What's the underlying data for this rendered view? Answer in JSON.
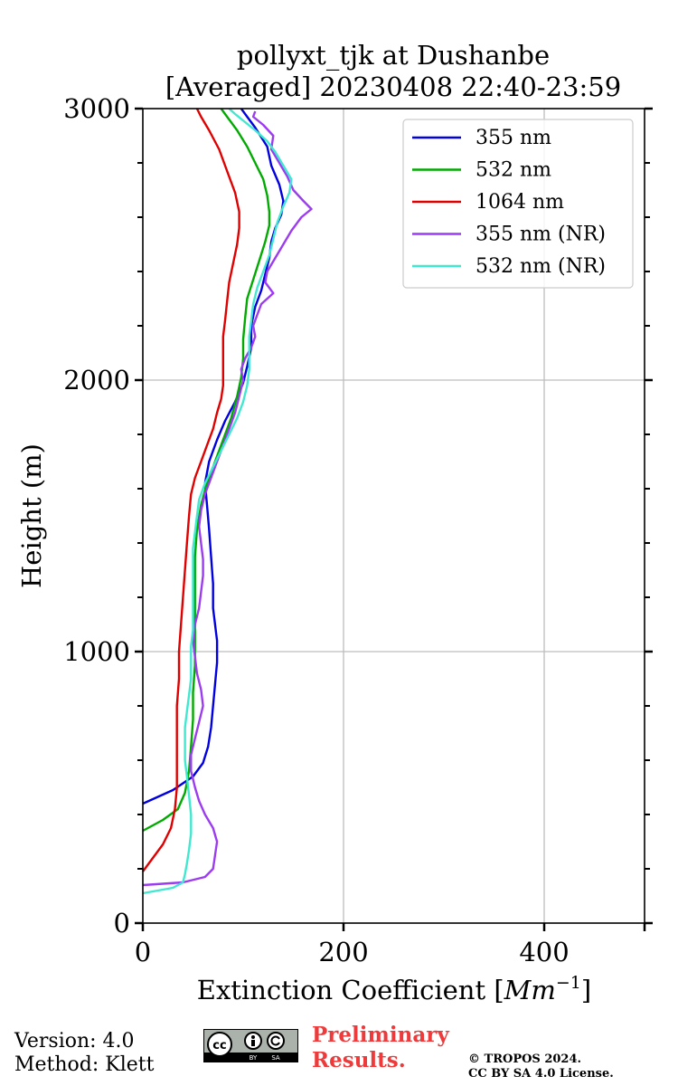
{
  "chart_data": {
    "type": "line",
    "title": "pollyxt_tjk at Dushanbe",
    "subtitle": "[Averaged] 20230408 22:40-23:59",
    "xlabel": "Extinction Coefficient [",
    "xlabel_unit": "Mm",
    "xlabel_exp": "−1",
    "xlabel_close": "]",
    "ylabel": "Height (m)",
    "xlim": [
      0,
      500
    ],
    "ylim": [
      0,
      3000
    ],
    "xticks": [
      0,
      200,
      400
    ],
    "yticks": [
      0,
      1000,
      2000,
      3000
    ],
    "grid": true,
    "legend_position": "top-right",
    "series": [
      {
        "name": "355 nm",
        "color": "#0000e0",
        "points": [
          [
            0,
            440
          ],
          [
            30,
            490
          ],
          [
            50,
            540
          ],
          [
            60,
            590
          ],
          [
            65,
            650
          ],
          [
            68,
            720
          ],
          [
            70,
            800
          ],
          [
            72,
            880
          ],
          [
            74,
            960
          ],
          [
            74,
            1040
          ],
          [
            72,
            1100
          ],
          [
            70,
            1160
          ],
          [
            70,
            1250
          ],
          [
            68,
            1350
          ],
          [
            66,
            1450
          ],
          [
            64,
            1540
          ],
          [
            62,
            1620
          ],
          [
            66,
            1700
          ],
          [
            74,
            1780
          ],
          [
            82,
            1850
          ],
          [
            92,
            1920
          ],
          [
            100,
            1990
          ],
          [
            104,
            2050
          ],
          [
            108,
            2120
          ],
          [
            108,
            2200
          ],
          [
            112,
            2270
          ],
          [
            118,
            2330
          ],
          [
            122,
            2390
          ],
          [
            126,
            2450
          ],
          [
            128,
            2510
          ],
          [
            132,
            2560
          ],
          [
            138,
            2610
          ],
          [
            140,
            2660
          ],
          [
            136,
            2720
          ],
          [
            128,
            2790
          ],
          [
            124,
            2860
          ],
          [
            112,
            2930
          ],
          [
            104,
            2970
          ],
          [
            98,
            3000
          ]
        ]
      },
      {
        "name": "532 nm",
        "color": "#00aa00",
        "points": [
          [
            0,
            340
          ],
          [
            20,
            380
          ],
          [
            35,
            420
          ],
          [
            42,
            480
          ],
          [
            46,
            560
          ],
          [
            48,
            650
          ],
          [
            50,
            750
          ],
          [
            50,
            850
          ],
          [
            52,
            950
          ],
          [
            52,
            1050
          ],
          [
            52,
            1150
          ],
          [
            52,
            1250
          ],
          [
            52,
            1350
          ],
          [
            54,
            1450
          ],
          [
            58,
            1540
          ],
          [
            64,
            1620
          ],
          [
            72,
            1700
          ],
          [
            80,
            1780
          ],
          [
            88,
            1860
          ],
          [
            94,
            1940
          ],
          [
            98,
            2010
          ],
          [
            100,
            2080
          ],
          [
            100,
            2150
          ],
          [
            102,
            2230
          ],
          [
            104,
            2300
          ],
          [
            110,
            2370
          ],
          [
            116,
            2440
          ],
          [
            122,
            2510
          ],
          [
            126,
            2570
          ],
          [
            126,
            2620
          ],
          [
            124,
            2680
          ],
          [
            120,
            2740
          ],
          [
            112,
            2800
          ],
          [
            104,
            2860
          ],
          [
            94,
            2920
          ],
          [
            84,
            2970
          ],
          [
            78,
            3000
          ]
        ]
      },
      {
        "name": "1064 nm",
        "color": "#e00000",
        "points": [
          [
            0,
            190
          ],
          [
            10,
            240
          ],
          [
            20,
            290
          ],
          [
            28,
            350
          ],
          [
            32,
            420
          ],
          [
            34,
            500
          ],
          [
            34,
            600
          ],
          [
            34,
            700
          ],
          [
            34,
            800
          ],
          [
            36,
            900
          ],
          [
            36,
            1000
          ],
          [
            38,
            1100
          ],
          [
            40,
            1200
          ],
          [
            42,
            1300
          ],
          [
            44,
            1400
          ],
          [
            46,
            1500
          ],
          [
            48,
            1580
          ],
          [
            52,
            1640
          ],
          [
            58,
            1700
          ],
          [
            64,
            1760
          ],
          [
            70,
            1820
          ],
          [
            74,
            1880
          ],
          [
            78,
            1930
          ],
          [
            80,
            1980
          ],
          [
            80,
            2040
          ],
          [
            80,
            2100
          ],
          [
            80,
            2160
          ],
          [
            82,
            2220
          ],
          [
            84,
            2290
          ],
          [
            86,
            2360
          ],
          [
            90,
            2430
          ],
          [
            94,
            2500
          ],
          [
            96,
            2560
          ],
          [
            96,
            2620
          ],
          [
            92,
            2690
          ],
          [
            84,
            2770
          ],
          [
            76,
            2850
          ],
          [
            66,
            2920
          ],
          [
            58,
            2970
          ],
          [
            54,
            3000
          ]
        ]
      },
      {
        "name": "355 nm (NR)",
        "color": "#9b3cf0",
        "points": [
          [
            0,
            140
          ],
          [
            40,
            150
          ],
          [
            62,
            170
          ],
          [
            70,
            200
          ],
          [
            72,
            250
          ],
          [
            74,
            300
          ],
          [
            70,
            350
          ],
          [
            62,
            400
          ],
          [
            56,
            450
          ],
          [
            52,
            500
          ],
          [
            48,
            560
          ],
          [
            48,
            620
          ],
          [
            52,
            680
          ],
          [
            56,
            740
          ],
          [
            60,
            800
          ],
          [
            58,
            860
          ],
          [
            54,
            920
          ],
          [
            52,
            980
          ],
          [
            50,
            1040
          ],
          [
            52,
            1100
          ],
          [
            56,
            1160
          ],
          [
            58,
            1220
          ],
          [
            60,
            1280
          ],
          [
            60,
            1340
          ],
          [
            58,
            1400
          ],
          [
            56,
            1460
          ],
          [
            58,
            1520
          ],
          [
            62,
            1580
          ],
          [
            68,
            1640
          ],
          [
            74,
            1700
          ],
          [
            80,
            1760
          ],
          [
            86,
            1820
          ],
          [
            92,
            1880
          ],
          [
            96,
            1940
          ],
          [
            100,
            2000
          ],
          [
            98,
            2040
          ],
          [
            102,
            2080
          ],
          [
            108,
            2120
          ],
          [
            112,
            2160
          ],
          [
            110,
            2200
          ],
          [
            114,
            2240
          ],
          [
            118,
            2280
          ],
          [
            130,
            2320
          ],
          [
            122,
            2360
          ],
          [
            124,
            2400
          ],
          [
            132,
            2450
          ],
          [
            140,
            2500
          ],
          [
            148,
            2550
          ],
          [
            158,
            2600
          ],
          [
            168,
            2630
          ],
          [
            160,
            2660
          ],
          [
            150,
            2700
          ],
          [
            144,
            2750
          ],
          [
            136,
            2800
          ],
          [
            128,
            2850
          ],
          [
            130,
            2900
          ],
          [
            120,
            2940
          ],
          [
            110,
            2970
          ],
          [
            112,
            2990
          ]
        ]
      },
      {
        "name": "532 nm (NR)",
        "color": "#40e8d0",
        "points": [
          [
            0,
            110
          ],
          [
            30,
            130
          ],
          [
            40,
            150
          ],
          [
            42,
            180
          ],
          [
            44,
            220
          ],
          [
            46,
            270
          ],
          [
            48,
            330
          ],
          [
            48,
            400
          ],
          [
            46,
            470
          ],
          [
            44,
            540
          ],
          [
            42,
            600
          ],
          [
            42,
            660
          ],
          [
            42,
            720
          ],
          [
            44,
            780
          ],
          [
            46,
            840
          ],
          [
            48,
            900
          ],
          [
            48,
            960
          ],
          [
            48,
            1020
          ],
          [
            50,
            1080
          ],
          [
            50,
            1140
          ],
          [
            50,
            1200
          ],
          [
            50,
            1260
          ],
          [
            50,
            1320
          ],
          [
            50,
            1380
          ],
          [
            52,
            1440
          ],
          [
            54,
            1500
          ],
          [
            56,
            1560
          ],
          [
            62,
            1620
          ],
          [
            70,
            1680
          ],
          [
            78,
            1740
          ],
          [
            86,
            1800
          ],
          [
            94,
            1860
          ],
          [
            100,
            1920
          ],
          [
            104,
            1980
          ],
          [
            106,
            2040
          ],
          [
            106,
            2100
          ],
          [
            106,
            2160
          ],
          [
            108,
            2220
          ],
          [
            110,
            2280
          ],
          [
            114,
            2340
          ],
          [
            120,
            2400
          ],
          [
            126,
            2460
          ],
          [
            130,
            2520
          ],
          [
            134,
            2580
          ],
          [
            140,
            2640
          ],
          [
            146,
            2690
          ],
          [
            148,
            2740
          ],
          [
            140,
            2790
          ],
          [
            132,
            2840
          ],
          [
            124,
            2880
          ],
          [
            112,
            2920
          ],
          [
            102,
            2950
          ],
          [
            92,
            2980
          ],
          [
            86,
            3000
          ]
        ]
      }
    ]
  },
  "footer": {
    "version": "Version: 4.0",
    "method": "Method: Klett",
    "prelim_line1": "Preliminary",
    "prelim_line2": "Results.",
    "copyright_line1": "© TROPOS 2024.",
    "copyright_line2": "CC BY SA 4.0 License.",
    "cc_badge": "cc",
    "cc_by": "BY",
    "cc_sa": "SA"
  }
}
